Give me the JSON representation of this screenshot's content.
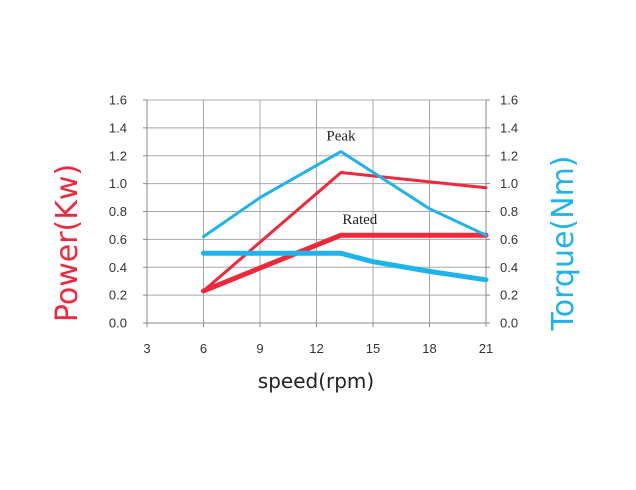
{
  "chart_data": {
    "type": "line",
    "xlabel": "speed(rpm)",
    "ylabel_left": "Power(Kw)",
    "ylabel_right": "Torque(Nm)",
    "xlim": [
      3,
      21
    ],
    "ylim": [
      0,
      1.6
    ],
    "x_ticks": [
      "3",
      "6",
      "9",
      "12",
      "15",
      "18",
      "21"
    ],
    "x_tick_values": [
      3,
      6,
      9,
      12,
      15,
      18,
      21
    ],
    "y_ticks_left": [
      "0.0",
      "0.2",
      "0.4",
      "0.6",
      "0.8",
      "1.0",
      "1.2",
      "1.4",
      "1.6"
    ],
    "y_ticks_right": [
      "0.0",
      "0.2",
      "0.4",
      "0.6",
      "0.8",
      "1.0",
      "1.2",
      "1.4",
      "1.6"
    ],
    "y_tick_values": [
      0,
      0.2,
      0.4,
      0.6,
      0.8,
      1.0,
      1.2,
      1.4,
      1.6
    ],
    "grid": true,
    "colors": {
      "power": "#f0283c",
      "torque": "#1eb4eb",
      "grid": "#a8a8a8",
      "axis": "#888888"
    },
    "series": [
      {
        "name": "Peak",
        "axis": "power",
        "style": "thin",
        "x": [
          6,
          13.3,
          21
        ],
        "y": [
          0.23,
          1.08,
          0.97
        ]
      },
      {
        "name": "Rated",
        "axis": "power",
        "style": "thick",
        "x": [
          6,
          13.3,
          21
        ],
        "y": [
          0.23,
          0.63,
          0.63
        ]
      },
      {
        "name": "Peak",
        "axis": "torque",
        "style": "thin",
        "x": [
          6,
          9,
          13.3,
          18,
          21
        ],
        "y": [
          0.62,
          0.9,
          1.23,
          0.82,
          0.63
        ]
      },
      {
        "name": "Rated",
        "axis": "torque",
        "style": "thick",
        "x": [
          6,
          13.3,
          15,
          18,
          21
        ],
        "y": [
          0.5,
          0.5,
          0.44,
          0.37,
          0.31
        ]
      }
    ],
    "annotations": [
      {
        "text": "Peak",
        "x": 13.3,
        "y": 1.31
      },
      {
        "text": "Rated",
        "x": 14.3,
        "y": 0.71
      }
    ]
  }
}
